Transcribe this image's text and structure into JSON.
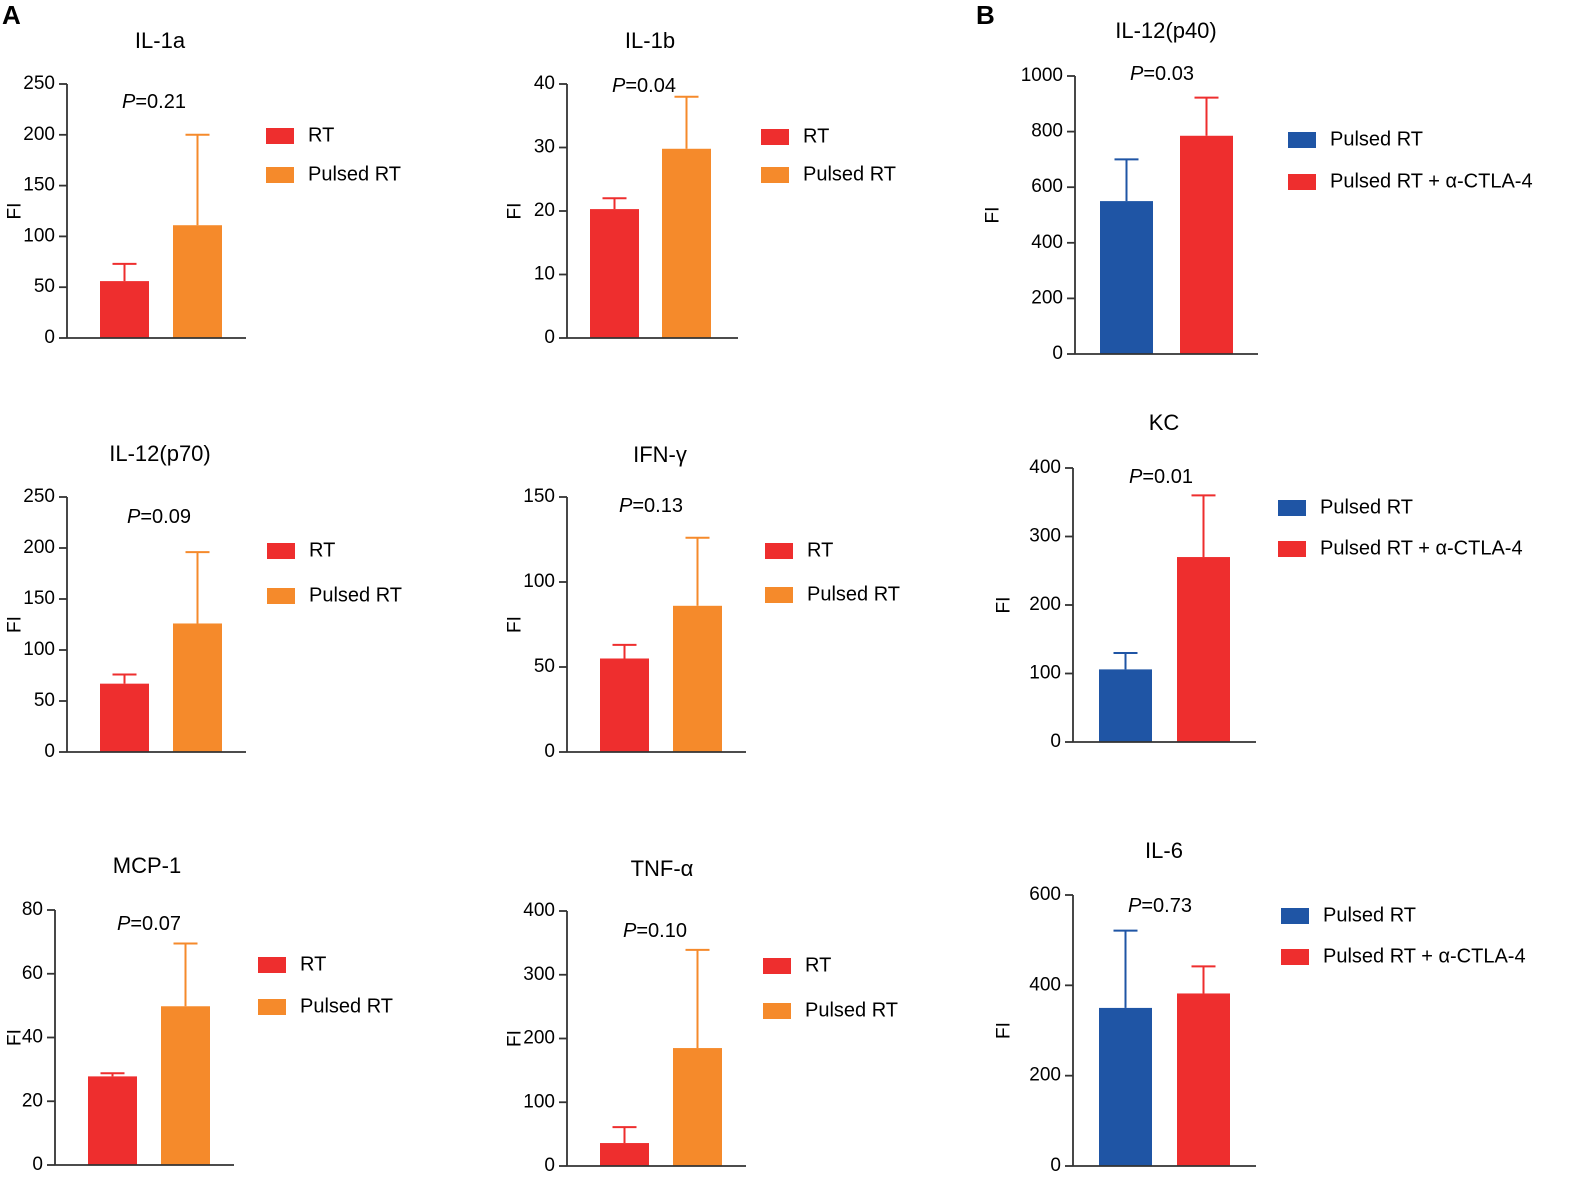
{
  "panel_labels": [
    "A",
    "B"
  ],
  "colors": {
    "red": "#EE2E2E",
    "orange": "#F58A2B",
    "blue": "#1F55A5",
    "axis": "#333333",
    "text": "#000000"
  },
  "chart_data": [
    {
      "id": "il1a",
      "panel": "A",
      "type": "bar",
      "title": "IL-1a",
      "ylabel": "FI",
      "ylim": [
        0,
        250
      ],
      "ticks": [
        0,
        50,
        100,
        150,
        200,
        250
      ],
      "p_label": "P",
      "p_value": "=0.21",
      "categories": [
        "RT",
        "Pulsed RT"
      ],
      "values": [
        56,
        111
      ],
      "errors": [
        73,
        200
      ],
      "colors": [
        "#EE2E2E",
        "#F58A2B"
      ],
      "legend": [
        "RT",
        "Pulsed RT"
      ]
    },
    {
      "id": "il1b",
      "panel": "A",
      "type": "bar",
      "title": "IL-1b",
      "ylabel": "FI",
      "ylim": [
        0,
        40
      ],
      "ticks": [
        0,
        10,
        20,
        30,
        40
      ],
      "p_label": "P",
      "p_value": "=0.04",
      "categories": [
        "RT",
        "Pulsed RT"
      ],
      "values": [
        20.3,
        29.8
      ],
      "errors": [
        22,
        38
      ],
      "colors": [
        "#EE2E2E",
        "#F58A2B"
      ],
      "legend": [
        "RT",
        "Pulsed RT"
      ]
    },
    {
      "id": "il12p70",
      "panel": "A",
      "type": "bar",
      "title": "IL-12(p70)",
      "ylabel": "FI",
      "ylim": [
        0,
        250
      ],
      "ticks": [
        0,
        50,
        100,
        150,
        200,
        250
      ],
      "p_label": "P",
      "p_value": "=0.09",
      "categories": [
        "RT",
        "Pulsed RT"
      ],
      "values": [
        67,
        126
      ],
      "errors": [
        76,
        196
      ],
      "colors": [
        "#EE2E2E",
        "#F58A2B"
      ],
      "legend": [
        "RT",
        "Pulsed RT"
      ]
    },
    {
      "id": "ifng",
      "panel": "A",
      "type": "bar",
      "title": "IFN-γ",
      "ylabel": "FI",
      "ylim": [
        0,
        150
      ],
      "ticks": [
        0,
        50,
        100,
        150
      ],
      "p_label": "P",
      "p_value": "=0.13",
      "categories": [
        "RT",
        "Pulsed RT"
      ],
      "values": [
        55,
        86
      ],
      "errors": [
        63,
        126
      ],
      "colors": [
        "#EE2E2E",
        "#F58A2B"
      ],
      "legend": [
        "RT",
        "Pulsed RT"
      ]
    },
    {
      "id": "mcp1",
      "panel": "A",
      "type": "bar",
      "title": "MCP-1",
      "ylabel": "FI",
      "ylim": [
        0,
        80
      ],
      "ticks": [
        0,
        20,
        40,
        60,
        80
      ],
      "p_label": "P",
      "p_value": "=0.07",
      "categories": [
        "RT",
        "Pulsed RT"
      ],
      "values": [
        27.8,
        49.8
      ],
      "errors": [
        28.8,
        69.5
      ],
      "colors": [
        "#EE2E2E",
        "#F58A2B"
      ],
      "legend": [
        "RT",
        "Pulsed RT"
      ]
    },
    {
      "id": "tnfa",
      "panel": "A",
      "type": "bar",
      "title": "TNF-α",
      "ylabel": "FI",
      "ylim": [
        0,
        400
      ],
      "ticks": [
        0,
        100,
        200,
        300,
        400
      ],
      "p_label": "P",
      "p_value": "=0.10",
      "categories": [
        "RT",
        "Pulsed RT"
      ],
      "values": [
        36,
        185
      ],
      "errors": [
        61,
        339
      ],
      "colors": [
        "#EE2E2E",
        "#F58A2B"
      ],
      "legend": [
        "RT",
        "Pulsed RT"
      ]
    },
    {
      "id": "il12p40",
      "panel": "B",
      "type": "bar",
      "title": "IL-12(p40)",
      "ylabel": "FI",
      "ylim": [
        0,
        1000
      ],
      "ticks": [
        0,
        200,
        400,
        600,
        800,
        1000
      ],
      "p_label": "P",
      "p_value": "=0.03",
      "categories": [
        "Pulsed RT",
        "Pulsed RT + α-CTLA-4"
      ],
      "values": [
        550,
        785
      ],
      "errors": [
        700,
        922
      ],
      "colors": [
        "#1F55A5",
        "#EE2E2E"
      ],
      "legend": [
        "Pulsed RT",
        "Pulsed RT + α-CTLA-4"
      ]
    },
    {
      "id": "kc",
      "panel": "B",
      "type": "bar",
      "title": "KC",
      "ylabel": "FI",
      "ylim": [
        0,
        400
      ],
      "ticks": [
        0,
        100,
        200,
        300,
        400
      ],
      "p_label": "P",
      "p_value": "=0.01",
      "categories": [
        "Pulsed RT",
        "Pulsed RT + α-CTLA-4"
      ],
      "values": [
        106,
        270
      ],
      "errors": [
        130,
        360
      ],
      "colors": [
        "#1F55A5",
        "#EE2E2E"
      ],
      "legend": [
        "Pulsed RT",
        "Pulsed RT + α-CTLA-4"
      ]
    },
    {
      "id": "il6",
      "panel": "B",
      "type": "bar",
      "title": "IL-6",
      "ylabel": "FI",
      "ylim": [
        0,
        600
      ],
      "ticks": [
        0,
        200,
        400,
        600
      ],
      "p_label": "P",
      "p_value": "=0.73",
      "categories": [
        "Pulsed RT",
        "Pulsed RT + α-CTLA-4"
      ],
      "values": [
        350,
        382
      ],
      "errors": [
        521,
        442
      ],
      "colors": [
        "#1F55A5",
        "#EE2E2E"
      ],
      "legend": [
        "Pulsed RT",
        "Pulsed RT + α-CTLA-4"
      ]
    }
  ]
}
